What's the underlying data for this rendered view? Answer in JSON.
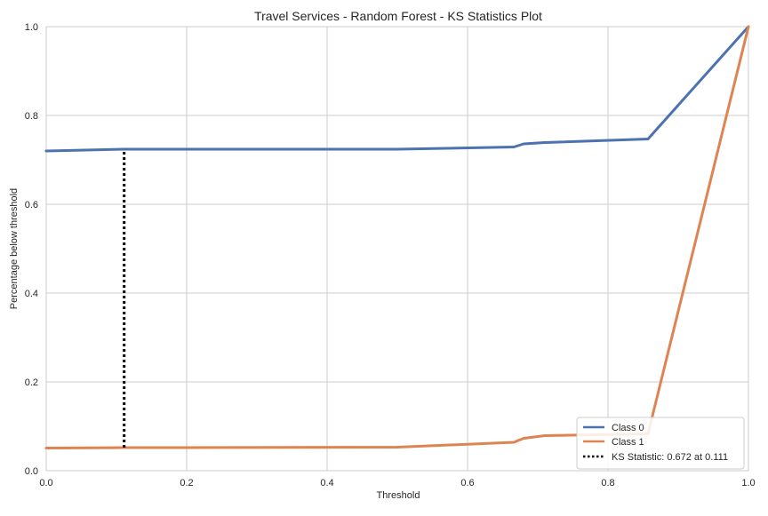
{
  "chart_data": {
    "type": "line",
    "title": "Travel Services - Random Forest - KS Statistics Plot",
    "xlabel": "Threshold",
    "ylabel": "Percentage below threshold",
    "xlim": [
      0,
      1
    ],
    "ylim": [
      0,
      1
    ],
    "xticks": [
      "0.0",
      "0.2",
      "0.4",
      "0.6",
      "0.8",
      "1.0"
    ],
    "yticks": [
      "0.0",
      "0.2",
      "0.4",
      "0.6",
      "0.8",
      "1.0"
    ],
    "grid": true,
    "legend_position": "lower-right",
    "series": [
      {
        "name": "Class 0",
        "color": "#4c72b0",
        "x": [
          0.0,
          0.111,
          0.2,
          0.5,
          0.666,
          0.68,
          0.71,
          0.857,
          1.0
        ],
        "y": [
          0.72,
          0.724,
          0.724,
          0.724,
          0.729,
          0.736,
          0.739,
          0.747,
          1.0
        ]
      },
      {
        "name": "Class 1",
        "color": "#dd8452",
        "x": [
          0.0,
          0.111,
          0.2,
          0.5,
          0.666,
          0.68,
          0.71,
          0.857,
          1.0
        ],
        "y": [
          0.051,
          0.052,
          0.052,
          0.053,
          0.064,
          0.073,
          0.079,
          0.083,
          1.0
        ]
      }
    ],
    "ks_statistic": {
      "label": "KS Statistic: 0.672 at 0.111",
      "x": 0.111,
      "y_low": 0.052,
      "y_high": 0.724,
      "color": "#000000"
    }
  }
}
